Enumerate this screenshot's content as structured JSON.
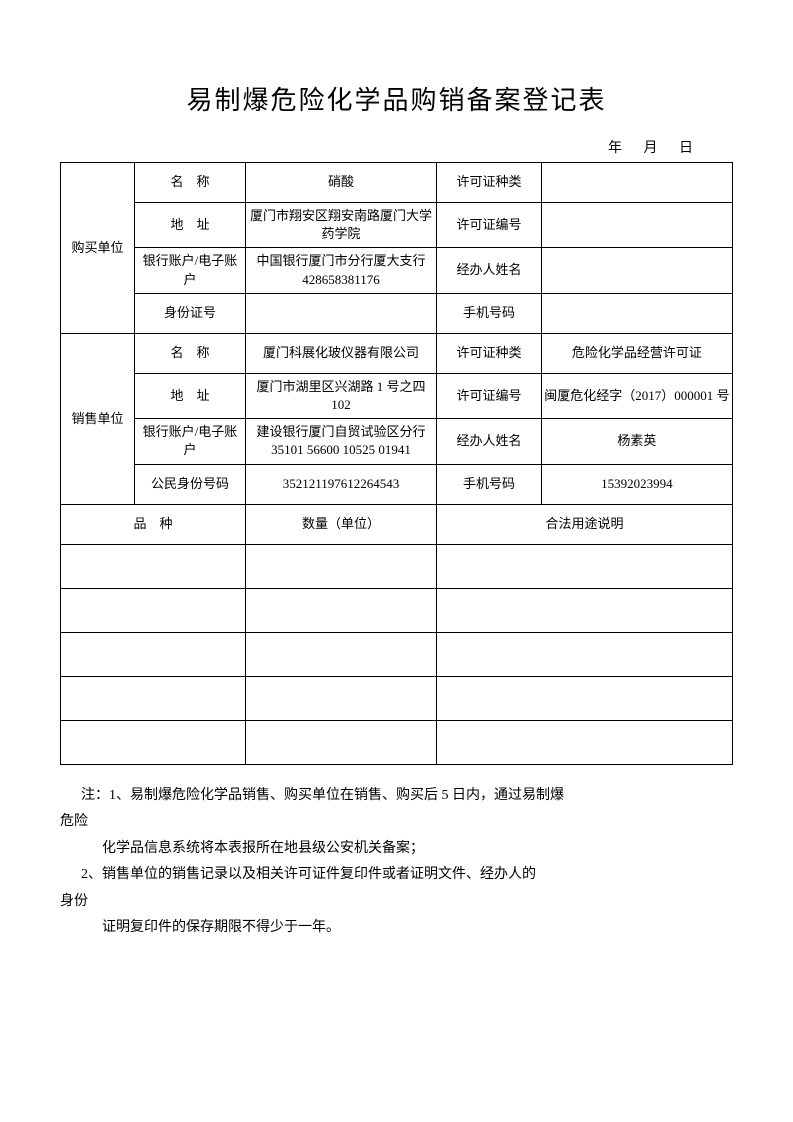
{
  "title": "易制爆危险化学品购销备案登记表",
  "date_labels": {
    "year": "年",
    "month": "月",
    "day": "日"
  },
  "buyer": {
    "section_label": "购买单位",
    "name_label": "名　称",
    "name_value": "硝酸",
    "permit_type_label": "许可证种类",
    "permit_type_value": "",
    "address_label": "地　址",
    "address_value": "厦门市翔安区翔安南路厦门大学药学院",
    "permit_no_label": "许可证编号",
    "permit_no_value": "",
    "bank_label": "银行账户/电子账户",
    "bank_value": "中国银行厦门市分行厦大支行 428658381176",
    "agent_label": "经办人姓名",
    "agent_value": "",
    "id_label": "身份证号",
    "id_value": "",
    "phone_label": "手机号码",
    "phone_value": ""
  },
  "seller": {
    "section_label": "销售单位",
    "name_label": "名　称",
    "name_value": "厦门科展化玻仪器有限公司",
    "permit_type_label": "许可证种类",
    "permit_type_value": "危险化学品经营许可证",
    "address_label": "地　址",
    "address_value": "厦门市湖里区兴湖路 1 号之四 102",
    "permit_no_label": "许可证编号",
    "permit_no_value": "闽厦危化经字（2017）000001 号",
    "bank_label": "银行账户/电子账户",
    "bank_value": "建设银行厦门自贸试验区分行 35101 56600 10525 01941",
    "agent_label": "经办人姓名",
    "agent_value": "杨素英",
    "id_label": "公民身份号码",
    "id_value": "352121197612264543",
    "phone_label": "手机号码",
    "phone_value": "15392023994"
  },
  "items_header": {
    "col1": "品　种",
    "col2": "数量（单位）",
    "col3": "合法用途说明"
  },
  "notes": {
    "line1": "注：1、易制爆危险化学品销售、购买单位在销售、购买后 5 日内，通过易制爆",
    "line1b": "危险",
    "line2": "化学品信息系统将本表报所在地县级公安机关备案；",
    "line3": "2、销售单位的销售记录以及相关许可证件复印件或者证明文件、经办人的",
    "line3b": "身份",
    "line4": "证明复印件的保存期限不得少于一年。"
  },
  "table_style": {
    "border_color": "#000000",
    "background_color": "#ffffff",
    "font_size": 13
  }
}
